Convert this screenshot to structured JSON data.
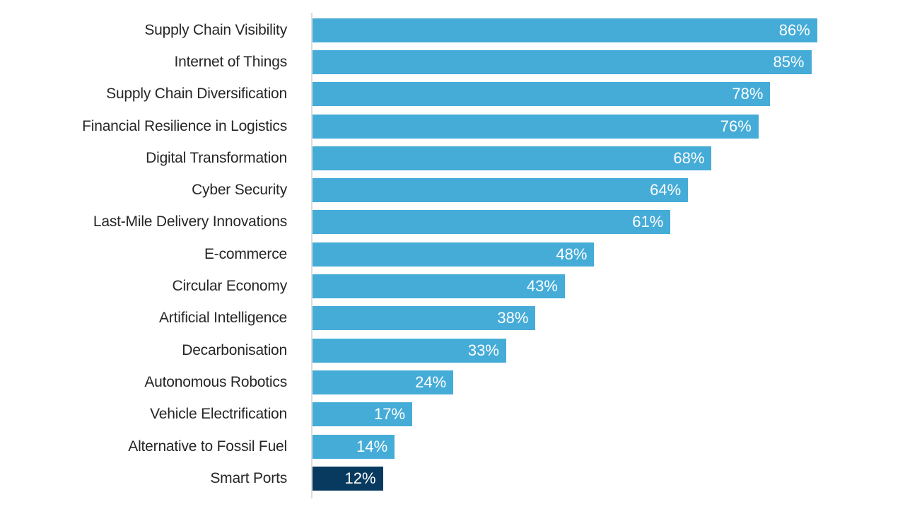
{
  "chart_data": {
    "type": "bar",
    "orientation": "horizontal",
    "title": "",
    "xlabel": "",
    "ylabel": "",
    "xlim": [
      0,
      100
    ],
    "grid": false,
    "legend": false,
    "value_suffix": "%",
    "categories": [
      "Supply Chain Visibility",
      "Internet of Things",
      "Supply Chain Diversification",
      "Financial Resilience in Logistics",
      "Digital Transformation",
      "Cyber Security",
      "Last-Mile Delivery Innovations",
      "E-commerce",
      "Circular Economy",
      "Artificial Intelligence",
      "Decarbonisation",
      "Autonomous Robotics",
      "Vehicle Electrification",
      "Alternative to Fossil Fuel",
      "Smart Ports"
    ],
    "values": [
      86,
      85,
      78,
      76,
      68,
      64,
      61,
      48,
      43,
      38,
      33,
      24,
      17,
      14,
      12
    ],
    "highlight_category": "Smart Ports"
  },
  "colors": {
    "bar": "#45acd8",
    "highlight_bar": "#083a5f",
    "value_label": "#ffffff",
    "category_label": "#262626",
    "axis_line": "#dcdcdc",
    "background": "#ffffff"
  }
}
